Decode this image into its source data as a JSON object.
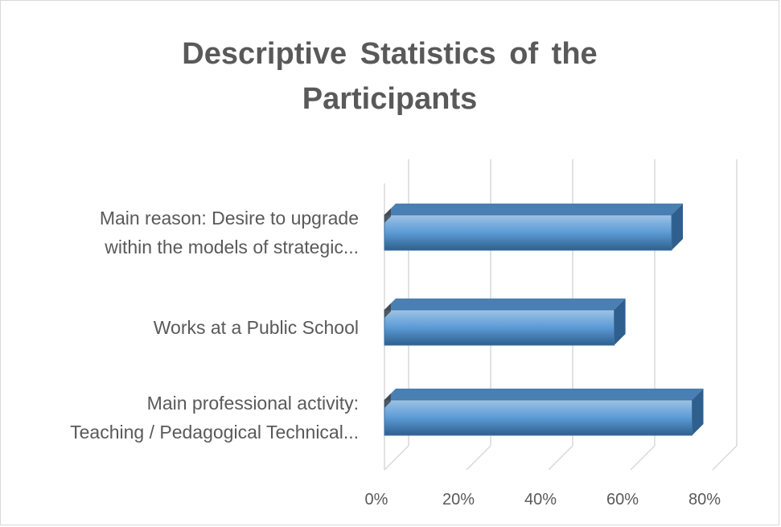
{
  "chart_data": {
    "type": "bar",
    "orientation": "horizontal",
    "style": "3d",
    "title": "Descriptive Statistics of the Participants",
    "title_lines": [
      "Descriptive Statistics of the",
      "Participants"
    ],
    "categories": [
      [
        "Main reason: Desire to upgrade",
        "within the models of strategic..."
      ],
      [
        "Works at a Public School"
      ],
      [
        "Main professional activity:",
        "Teaching / Pedagogical Technical..."
      ]
    ],
    "values": [
      70,
      56,
      75
    ],
    "xlim": [
      0,
      80
    ],
    "x_ticks": [
      0,
      20,
      40,
      60,
      80
    ],
    "x_tick_labels": [
      "0%",
      "20%",
      "40%",
      "60%",
      "80%"
    ],
    "grid": true,
    "legend": "none",
    "bar_color": "#5b9bd5",
    "bar_color_light": "#9dc3e6",
    "bar_color_dark": "#2e5f8e",
    "grid_color": "#d9d9d9",
    "text_color": "#595959"
  }
}
